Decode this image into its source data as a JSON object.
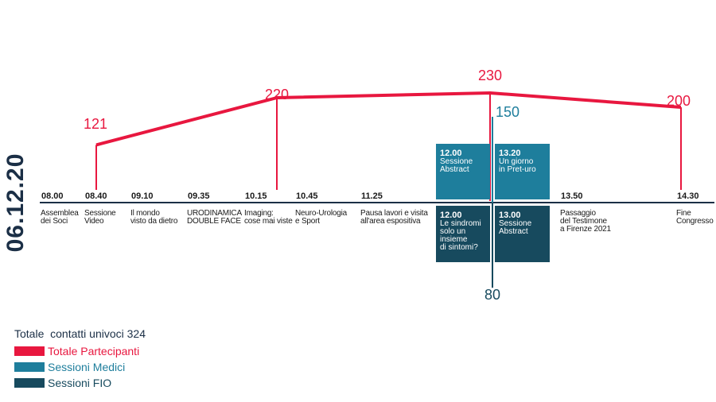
{
  "date": "06.12.20",
  "colors": {
    "totale": "#e8173f",
    "medici": "#1e7e9c",
    "fio": "#174a5e",
    "axis": "#1b2f46"
  },
  "chart_data": {
    "type": "line",
    "series": [
      {
        "name": "Totale Partecipanti",
        "points": [
          {
            "x": "08.40",
            "y": 121
          },
          {
            "x": "10.15",
            "y": 220
          },
          {
            "x": "12.00",
            "y": 230
          },
          {
            "x": "14.30",
            "y": 200
          }
        ]
      },
      {
        "name": "Sessioni Medici",
        "points": [
          {
            "x": "12.00",
            "y": 150
          }
        ]
      },
      {
        "name": "Sessioni FIO",
        "points": [
          {
            "x": "12.00",
            "y": 80
          }
        ]
      }
    ]
  },
  "labels": {
    "totale": [
      "121",
      "220",
      "230",
      "200"
    ],
    "medici": "150",
    "fio": "80"
  },
  "timeline": [
    {
      "time": "08.00",
      "desc": "Assemblea\ndei Soci"
    },
    {
      "time": "08.40",
      "desc": "Sessione\nVideo"
    },
    {
      "time": "09.10",
      "desc": "Il mondo\nvisto da dietro"
    },
    {
      "time": "09.35",
      "desc": "URODINAMICA\nDOUBLE FACE"
    },
    {
      "time": "10.15",
      "desc": "Imaging:\ncose mai viste"
    },
    {
      "time": "10.45",
      "desc": "Neuro-Urologia\ne Sport"
    },
    {
      "time": "11.25",
      "desc": "Pausa lavori e visita\nall'area espositiva"
    },
    {
      "time": "13.50",
      "desc": "Passaggio\ndel Testimone\na Firenze 2021"
    },
    {
      "time": "14.30",
      "desc": "Fine\nCongresso"
    }
  ],
  "sessions_medici": [
    {
      "time": "12.00",
      "desc": "Sessione\nAbstract"
    },
    {
      "time": "13.20",
      "desc": "Un giorno\nin Pret-uro"
    }
  ],
  "sessions_fio": [
    {
      "time": "12.00",
      "desc": "Le sindromi\nsolo un insieme\ndi sintomi?"
    },
    {
      "time": "13.00",
      "desc": "Sessione\nAbstract"
    }
  ],
  "legend": {
    "title": "Totale  contatti univoci 324",
    "items": [
      {
        "label": "Totale Partecipanti",
        "color": "#e8173f"
      },
      {
        "label": "Sessioni Medici",
        "color": "#1e7e9c"
      },
      {
        "label": "Sessioni FIO",
        "color": "#174a5e"
      }
    ]
  }
}
